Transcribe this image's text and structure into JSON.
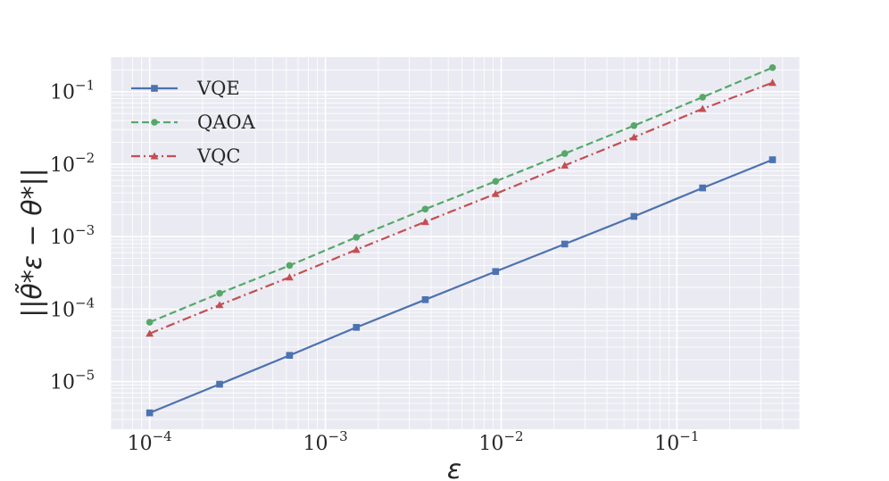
{
  "chart_data": {
    "type": "line",
    "title": "",
    "xlabel": "ε",
    "ylabel": "||θ̃*ε − θ*||",
    "xscale": "log",
    "yscale": "log",
    "xlim": [
      6e-05,
      0.5
    ],
    "ylim": [
      2.2e-06,
      0.3
    ],
    "grid": true,
    "legend_position": "top-left",
    "x": [
      0.0001,
      0.00025,
      0.000625,
      0.0015,
      0.0037,
      0.0093,
      0.023,
      0.057,
      0.14,
      0.35
    ],
    "x_ticks": [
      {
        "value": 0.0001,
        "base": "10",
        "exp": "−4"
      },
      {
        "value": 0.001,
        "base": "10",
        "exp": "−3"
      },
      {
        "value": 0.01,
        "base": "10",
        "exp": "−2"
      },
      {
        "value": 0.1,
        "base": "10",
        "exp": "−1"
      }
    ],
    "y_ticks": [
      {
        "value": 1e-05,
        "base": "10",
        "exp": "−5"
      },
      {
        "value": 0.0001,
        "base": "10",
        "exp": "−4"
      },
      {
        "value": 0.001,
        "base": "10",
        "exp": "−3"
      },
      {
        "value": 0.01,
        "base": "10",
        "exp": "−2"
      },
      {
        "value": 0.1,
        "base": "10",
        "exp": "−1"
      }
    ],
    "series": [
      {
        "name": "VQE",
        "color": "#4c72b0",
        "dash": "solid",
        "marker": "square",
        "values": [
          3.7e-06,
          9.2e-06,
          2.3e-05,
          5.6e-05,
          0.000135,
          0.00033,
          0.00079,
          0.0019,
          0.0047,
          0.0115
        ]
      },
      {
        "name": "QAOA",
        "color": "#55a868",
        "dash": "dashed",
        "marker": "circle",
        "values": [
          6.6e-05,
          0.000165,
          0.0004,
          0.00098,
          0.0024,
          0.0058,
          0.014,
          0.034,
          0.084,
          0.215
        ]
      },
      {
        "name": "VQC",
        "color": "#c44e52",
        "dash": "dashdot",
        "marker": "triangle",
        "values": [
          4.6e-05,
          0.000114,
          0.000275,
          0.00066,
          0.0016,
          0.0039,
          0.0096,
          0.0235,
          0.058,
          0.133
        ]
      }
    ]
  }
}
